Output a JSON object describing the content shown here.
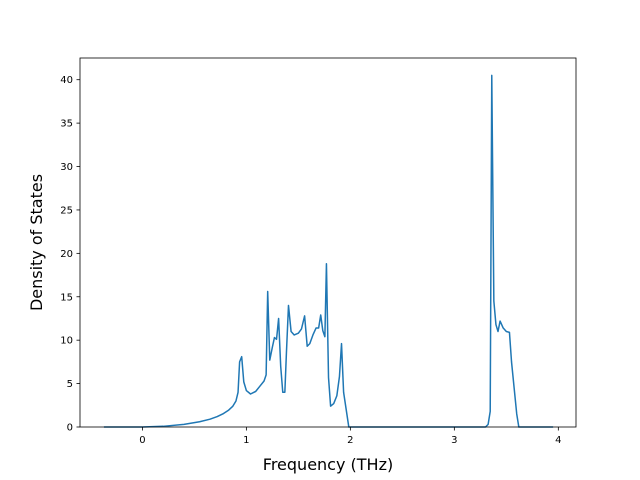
{
  "chart_data": {
    "type": "line",
    "title": "",
    "xlabel": "Frequency (THz)",
    "ylabel": "Density of States",
    "xlim": [
      -0.6,
      4.17
    ],
    "ylim": [
      0,
      42.5
    ],
    "grid": false,
    "legend": "none",
    "x_ticks": [
      0,
      1,
      2,
      3,
      4
    ],
    "y_ticks": [
      0,
      5,
      10,
      15,
      20,
      25,
      30,
      35,
      40
    ],
    "line_color": "#1f77b4",
    "series": [
      {
        "name": "",
        "points": [
          [
            -0.37,
            0
          ],
          [
            0.0,
            0
          ],
          [
            0.2,
            0.08
          ],
          [
            0.4,
            0.3
          ],
          [
            0.55,
            0.6
          ],
          [
            0.65,
            0.9
          ],
          [
            0.72,
            1.2
          ],
          [
            0.78,
            1.55
          ],
          [
            0.83,
            1.95
          ],
          [
            0.87,
            2.4
          ],
          [
            0.9,
            3.0
          ],
          [
            0.92,
            4.0
          ],
          [
            0.935,
            7.5
          ],
          [
            0.955,
            8.1
          ],
          [
            0.975,
            5.2
          ],
          [
            1.0,
            4.2
          ],
          [
            1.04,
            3.8
          ],
          [
            1.09,
            4.1
          ],
          [
            1.13,
            4.7
          ],
          [
            1.17,
            5.3
          ],
          [
            1.19,
            6.0
          ],
          [
            1.205,
            15.6
          ],
          [
            1.225,
            7.7
          ],
          [
            1.25,
            9.2
          ],
          [
            1.27,
            10.3
          ],
          [
            1.29,
            10.1
          ],
          [
            1.31,
            12.5
          ],
          [
            1.33,
            7.0
          ],
          [
            1.35,
            4.0
          ],
          [
            1.37,
            4.0
          ],
          [
            1.385,
            8.5
          ],
          [
            1.405,
            14.0
          ],
          [
            1.43,
            11.0
          ],
          [
            1.46,
            10.6
          ],
          [
            1.5,
            10.8
          ],
          [
            1.53,
            11.3
          ],
          [
            1.56,
            12.8
          ],
          [
            1.585,
            9.3
          ],
          [
            1.61,
            9.6
          ],
          [
            1.64,
            10.6
          ],
          [
            1.67,
            11.4
          ],
          [
            1.695,
            11.4
          ],
          [
            1.715,
            12.9
          ],
          [
            1.735,
            11.1
          ],
          [
            1.755,
            10.4
          ],
          [
            1.77,
            18.8
          ],
          [
            1.79,
            5.7
          ],
          [
            1.81,
            2.4
          ],
          [
            1.84,
            2.7
          ],
          [
            1.87,
            3.6
          ],
          [
            1.895,
            5.8
          ],
          [
            1.915,
            9.6
          ],
          [
            1.935,
            4.0
          ],
          [
            1.96,
            2.0
          ],
          [
            1.985,
            0
          ],
          [
            3.3,
            0
          ],
          [
            3.325,
            0.3
          ],
          [
            3.345,
            1.8
          ],
          [
            3.36,
            40.5
          ],
          [
            3.38,
            14.5
          ],
          [
            3.4,
            11.8
          ],
          [
            3.42,
            11.0
          ],
          [
            3.44,
            12.2
          ],
          [
            3.47,
            11.4
          ],
          [
            3.5,
            11.0
          ],
          [
            3.53,
            10.9
          ],
          [
            3.55,
            7.5
          ],
          [
            3.575,
            4.5
          ],
          [
            3.6,
            1.5
          ],
          [
            3.62,
            0
          ],
          [
            3.95,
            0
          ]
        ]
      }
    ]
  }
}
